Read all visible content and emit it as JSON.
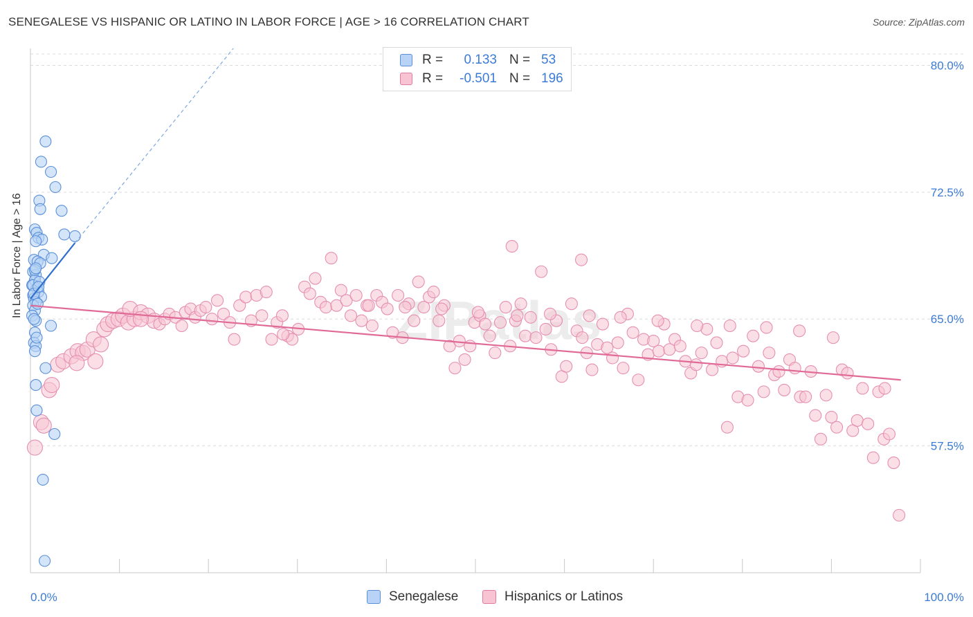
{
  "title": "SENEGALESE VS HISPANIC OR LATINO IN LABOR FORCE | AGE > 16 CORRELATION CHART",
  "source": "Source: ZipAtlas.com",
  "watermark": "ZIPatlas",
  "legend": {
    "rows": [
      {
        "label": "R =",
        "r": "0.133",
        "n_label": "N =",
        "n": "53",
        "fill": "#b8d3f5",
        "stroke": "#5a8fd8"
      },
      {
        "label": "R =",
        "r": "-0.501",
        "n_label": "N =",
        "n": "196",
        "fill": "#f8c4d4",
        "stroke": "#e37aa0"
      }
    ]
  },
  "bottom_legend": [
    {
      "name": "Senegalese",
      "fill": "#b8d3f5",
      "stroke": "#5a8fd8"
    },
    {
      "name": "Hispanics or Latinos",
      "fill": "#f8c4d4",
      "stroke": "#e37aa0"
    }
  ],
  "chart_data": {
    "type": "scatter",
    "title": "SENEGALESE VS HISPANIC OR LATINO IN LABOR FORCE | AGE > 16 CORRELATION CHART",
    "xlabel": "",
    "ylabel": "In Labor Force | Age > 16",
    "xlim": [
      0,
      100
    ],
    "ylim": [
      50.0,
      81.0
    ],
    "x_tick_labels": [
      "0.0%",
      "100.0%"
    ],
    "y_ticks": [
      57.5,
      65.0,
      72.5,
      80.0
    ],
    "y_tick_labels": [
      "57.5%",
      "65.0%",
      "72.5%",
      "80.0%"
    ],
    "grid": true,
    "legend_position": "top-center",
    "colors": {
      "senegalese": "#5a8fd8",
      "hispanic": "#e37aa0",
      "tick_label": "#3b7bd6"
    },
    "series": [
      {
        "name": "Senegalese",
        "color": "#5a8fd8",
        "points": [
          [
            1.7,
            75.5
          ],
          [
            1.2,
            74.3
          ],
          [
            2.3,
            73.7
          ],
          [
            2.8,
            72.8
          ],
          [
            1.0,
            72.0
          ],
          [
            1.1,
            71.5
          ],
          [
            3.5,
            71.4
          ],
          [
            0.5,
            70.3
          ],
          [
            0.7,
            70.1
          ],
          [
            0.9,
            69.8
          ],
          [
            3.8,
            70.0
          ],
          [
            5.0,
            69.9
          ],
          [
            1.3,
            69.7
          ],
          [
            0.6,
            69.6
          ],
          [
            1.5,
            68.8
          ],
          [
            2.4,
            68.6
          ],
          [
            0.4,
            68.5
          ],
          [
            0.8,
            68.4
          ],
          [
            1.1,
            68.3
          ],
          [
            0.3,
            67.8
          ],
          [
            0.6,
            67.6
          ],
          [
            0.5,
            67.3
          ],
          [
            0.2,
            67.0
          ],
          [
            0.7,
            66.8
          ],
          [
            0.9,
            66.6
          ],
          [
            0.3,
            66.4
          ],
          [
            1.2,
            66.3
          ],
          [
            0.4,
            66.2
          ],
          [
            0.6,
            66.0
          ],
          [
            0.3,
            65.8
          ],
          [
            0.5,
            65.5
          ],
          [
            0.2,
            65.2
          ],
          [
            0.6,
            64.9
          ],
          [
            2.3,
            64.6
          ],
          [
            0.5,
            64.2
          ],
          [
            0.4,
            63.6
          ],
          [
            0.6,
            63.4
          ],
          [
            0.5,
            63.1
          ],
          [
            1.7,
            62.1
          ],
          [
            0.6,
            61.1
          ],
          [
            0.7,
            59.6
          ],
          [
            2.7,
            58.2
          ],
          [
            1.4,
            55.5
          ],
          [
            1.6,
            50.7
          ],
          [
            0.3,
            67.0
          ],
          [
            0.4,
            66.5
          ],
          [
            0.8,
            65.9
          ],
          [
            0.5,
            67.9
          ],
          [
            1.0,
            67.2
          ],
          [
            0.6,
            68.0
          ],
          [
            0.9,
            66.9
          ],
          [
            0.4,
            65.0
          ],
          [
            0.7,
            63.9
          ]
        ]
      },
      {
        "name": "Hispanics or Latinos",
        "color": "#e37aa0",
        "points": [
          [
            0.5,
            57.4
          ],
          [
            1.2,
            58.9
          ],
          [
            1.5,
            58.7
          ],
          [
            2.1,
            60.8
          ],
          [
            2.4,
            61.1
          ],
          [
            3.1,
            62.3
          ],
          [
            3.7,
            62.5
          ],
          [
            4.6,
            62.8
          ],
          [
            5.3,
            63.1
          ],
          [
            5.9,
            63.0
          ],
          [
            6.4,
            63.2
          ],
          [
            7.1,
            63.8
          ],
          [
            7.9,
            63.5
          ],
          [
            8.3,
            64.4
          ],
          [
            8.7,
            64.7
          ],
          [
            9.3,
            64.9
          ],
          [
            9.9,
            65.0
          ],
          [
            10.4,
            65.2
          ],
          [
            11.0,
            64.8
          ],
          [
            11.7,
            65.0
          ],
          [
            11.2,
            65.6
          ],
          [
            12.4,
            65.4
          ],
          [
            13.2,
            65.2
          ],
          [
            13.9,
            64.9
          ],
          [
            14.5,
            64.7
          ],
          [
            15.1,
            65.0
          ],
          [
            15.6,
            65.3
          ],
          [
            16.3,
            65.1
          ],
          [
            17.0,
            64.6
          ],
          [
            17.4,
            65.4
          ],
          [
            18.0,
            65.6
          ],
          [
            18.5,
            65.1
          ],
          [
            19.1,
            65.5
          ],
          [
            19.7,
            65.7
          ],
          [
            20.4,
            65.0
          ],
          [
            21.0,
            66.1
          ],
          [
            21.7,
            65.3
          ],
          [
            22.4,
            64.8
          ],
          [
            22.9,
            63.8
          ],
          [
            23.5,
            65.8
          ],
          [
            24.2,
            66.3
          ],
          [
            24.8,
            64.9
          ],
          [
            25.4,
            66.4
          ],
          [
            26.0,
            65.2
          ],
          [
            26.5,
            66.6
          ],
          [
            27.1,
            63.8
          ],
          [
            27.7,
            64.8
          ],
          [
            28.3,
            65.2
          ],
          [
            28.9,
            64.0
          ],
          [
            29.4,
            63.8
          ],
          [
            30.1,
            64.4
          ],
          [
            30.8,
            66.9
          ],
          [
            31.4,
            66.5
          ],
          [
            32.0,
            67.4
          ],
          [
            32.6,
            66.0
          ],
          [
            33.2,
            65.7
          ],
          [
            33.8,
            68.6
          ],
          [
            34.4,
            65.8
          ],
          [
            34.9,
            66.7
          ],
          [
            35.5,
            66.1
          ],
          [
            36.0,
            65.2
          ],
          [
            36.6,
            66.4
          ],
          [
            37.2,
            64.9
          ],
          [
            37.8,
            65.8
          ],
          [
            38.4,
            64.6
          ],
          [
            38.9,
            66.4
          ],
          [
            39.5,
            66.0
          ],
          [
            40.1,
            65.6
          ],
          [
            40.7,
            64.2
          ],
          [
            41.3,
            66.4
          ],
          [
            41.8,
            63.9
          ],
          [
            42.5,
            65.9
          ],
          [
            43.1,
            64.9
          ],
          [
            43.6,
            67.2
          ],
          [
            44.2,
            65.7
          ],
          [
            44.8,
            66.3
          ],
          [
            45.3,
            66.6
          ],
          [
            45.9,
            64.9
          ],
          [
            46.5,
            65.8
          ],
          [
            47.1,
            63.4
          ],
          [
            47.7,
            62.1
          ],
          [
            48.2,
            63.7
          ],
          [
            48.8,
            62.6
          ],
          [
            49.4,
            63.4
          ],
          [
            49.9,
            64.8
          ],
          [
            50.5,
            65.2
          ],
          [
            51.1,
            64.7
          ],
          [
            51.6,
            64.0
          ],
          [
            52.2,
            63.0
          ],
          [
            52.8,
            64.8
          ],
          [
            53.4,
            65.7
          ],
          [
            53.9,
            63.4
          ],
          [
            54.5,
            64.9
          ],
          [
            55.1,
            65.9
          ],
          [
            55.6,
            64.0
          ],
          [
            56.2,
            65.1
          ],
          [
            56.8,
            63.9
          ],
          [
            57.4,
            67.8
          ],
          [
            57.9,
            64.4
          ],
          [
            58.5,
            63.2
          ],
          [
            59.1,
            64.9
          ],
          [
            59.7,
            61.6
          ],
          [
            60.2,
            62.2
          ],
          [
            60.8,
            65.9
          ],
          [
            61.4,
            64.3
          ],
          [
            62.0,
            63.9
          ],
          [
            62.5,
            63.0
          ],
          [
            63.1,
            62.0
          ],
          [
            63.7,
            63.5
          ],
          [
            64.3,
            64.7
          ],
          [
            64.8,
            63.3
          ],
          [
            65.4,
            62.7
          ],
          [
            66.0,
            63.6
          ],
          [
            66.6,
            62.1
          ],
          [
            67.1,
            65.3
          ],
          [
            67.7,
            64.2
          ],
          [
            68.3,
            61.4
          ],
          [
            68.9,
            63.8
          ],
          [
            69.4,
            62.9
          ],
          [
            70.0,
            63.7
          ],
          [
            70.6,
            63.1
          ],
          [
            71.2,
            64.7
          ],
          [
            71.8,
            63.2
          ],
          [
            72.4,
            63.8
          ],
          [
            73.0,
            63.4
          ],
          [
            73.6,
            62.5
          ],
          [
            74.2,
            61.8
          ],
          [
            74.8,
            62.3
          ],
          [
            75.4,
            63.0
          ],
          [
            76.0,
            64.4
          ],
          [
            76.6,
            62.0
          ],
          [
            77.1,
            63.6
          ],
          [
            77.7,
            62.5
          ],
          [
            78.3,
            58.6
          ],
          [
            78.9,
            62.7
          ],
          [
            79.5,
            60.4
          ],
          [
            80.1,
            63.1
          ],
          [
            80.6,
            60.2
          ],
          [
            81.2,
            64.0
          ],
          [
            81.8,
            62.2
          ],
          [
            82.4,
            60.7
          ],
          [
            83.0,
            63.0
          ],
          [
            83.6,
            61.7
          ],
          [
            84.1,
            61.9
          ],
          [
            84.7,
            60.8
          ],
          [
            85.3,
            62.6
          ],
          [
            85.9,
            62.1
          ],
          [
            86.5,
            60.4
          ],
          [
            87.1,
            60.4
          ],
          [
            87.7,
            61.9
          ],
          [
            88.2,
            59.3
          ],
          [
            88.8,
            57.9
          ],
          [
            89.4,
            60.5
          ],
          [
            90.0,
            59.2
          ],
          [
            90.6,
            58.6
          ],
          [
            91.2,
            62.0
          ],
          [
            91.8,
            61.8
          ],
          [
            92.4,
            58.4
          ],
          [
            92.9,
            59.0
          ],
          [
            93.5,
            60.9
          ],
          [
            94.1,
            58.8
          ],
          [
            94.7,
            56.8
          ],
          [
            95.3,
            60.7
          ],
          [
            95.9,
            57.9
          ],
          [
            96.5,
            58.2
          ],
          [
            97.0,
            56.5
          ],
          [
            97.6,
            53.4
          ],
          [
            96.0,
            60.9
          ],
          [
            90.2,
            63.9
          ],
          [
            86.4,
            64.3
          ],
          [
            82.7,
            64.5
          ],
          [
            78.6,
            64.6
          ],
          [
            74.9,
            64.6
          ],
          [
            70.5,
            64.9
          ],
          [
            66.3,
            65.1
          ],
          [
            62.8,
            65.2
          ],
          [
            58.4,
            65.3
          ],
          [
            54.7,
            65.2
          ],
          [
            50.3,
            65.4
          ],
          [
            46.2,
            65.6
          ],
          [
            42.1,
            65.7
          ],
          [
            38.0,
            65.8
          ],
          [
            61.9,
            68.5
          ],
          [
            54.1,
            69.3
          ],
          [
            28.4,
            64.1
          ],
          [
            12.4,
            65.0
          ],
          [
            7.3,
            62.5
          ],
          [
            5.2,
            62.4
          ]
        ]
      }
    ],
    "trend_lines": [
      {
        "series": "Senegalese",
        "x": [
          0.0,
          5.0
        ],
        "y": [
          66.2,
          69.5
        ],
        "extension_dashed": {
          "x": [
            5.0,
            22.8
          ],
          "y": [
            69.5,
            81.0
          ]
        }
      },
      {
        "series": "Hispanics or Latinos",
        "x": [
          0.0,
          97.8
        ],
        "y": [
          65.8,
          61.4
        ]
      }
    ]
  }
}
